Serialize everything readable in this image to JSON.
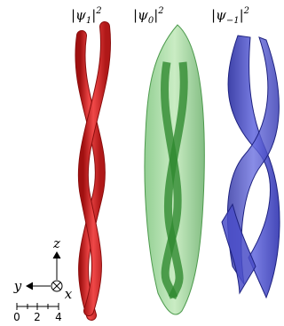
{
  "panels": [
    {
      "label": {
        "open": "|ψ",
        "sub": "1",
        "close": "|",
        "sup": "2"
      }
    },
    {
      "label": {
        "open": "|ψ",
        "sub": "0",
        "close": "|",
        "sup": "2"
      }
    },
    {
      "label": {
        "open": "|ψ",
        "sub": "−1",
        "close": "|",
        "sup": "2"
      }
    }
  ],
  "axes": {
    "z": "z",
    "y": "y",
    "x": "x"
  },
  "scale_bar": {
    "labels": [
      "0",
      "2",
      "4"
    ]
  }
}
